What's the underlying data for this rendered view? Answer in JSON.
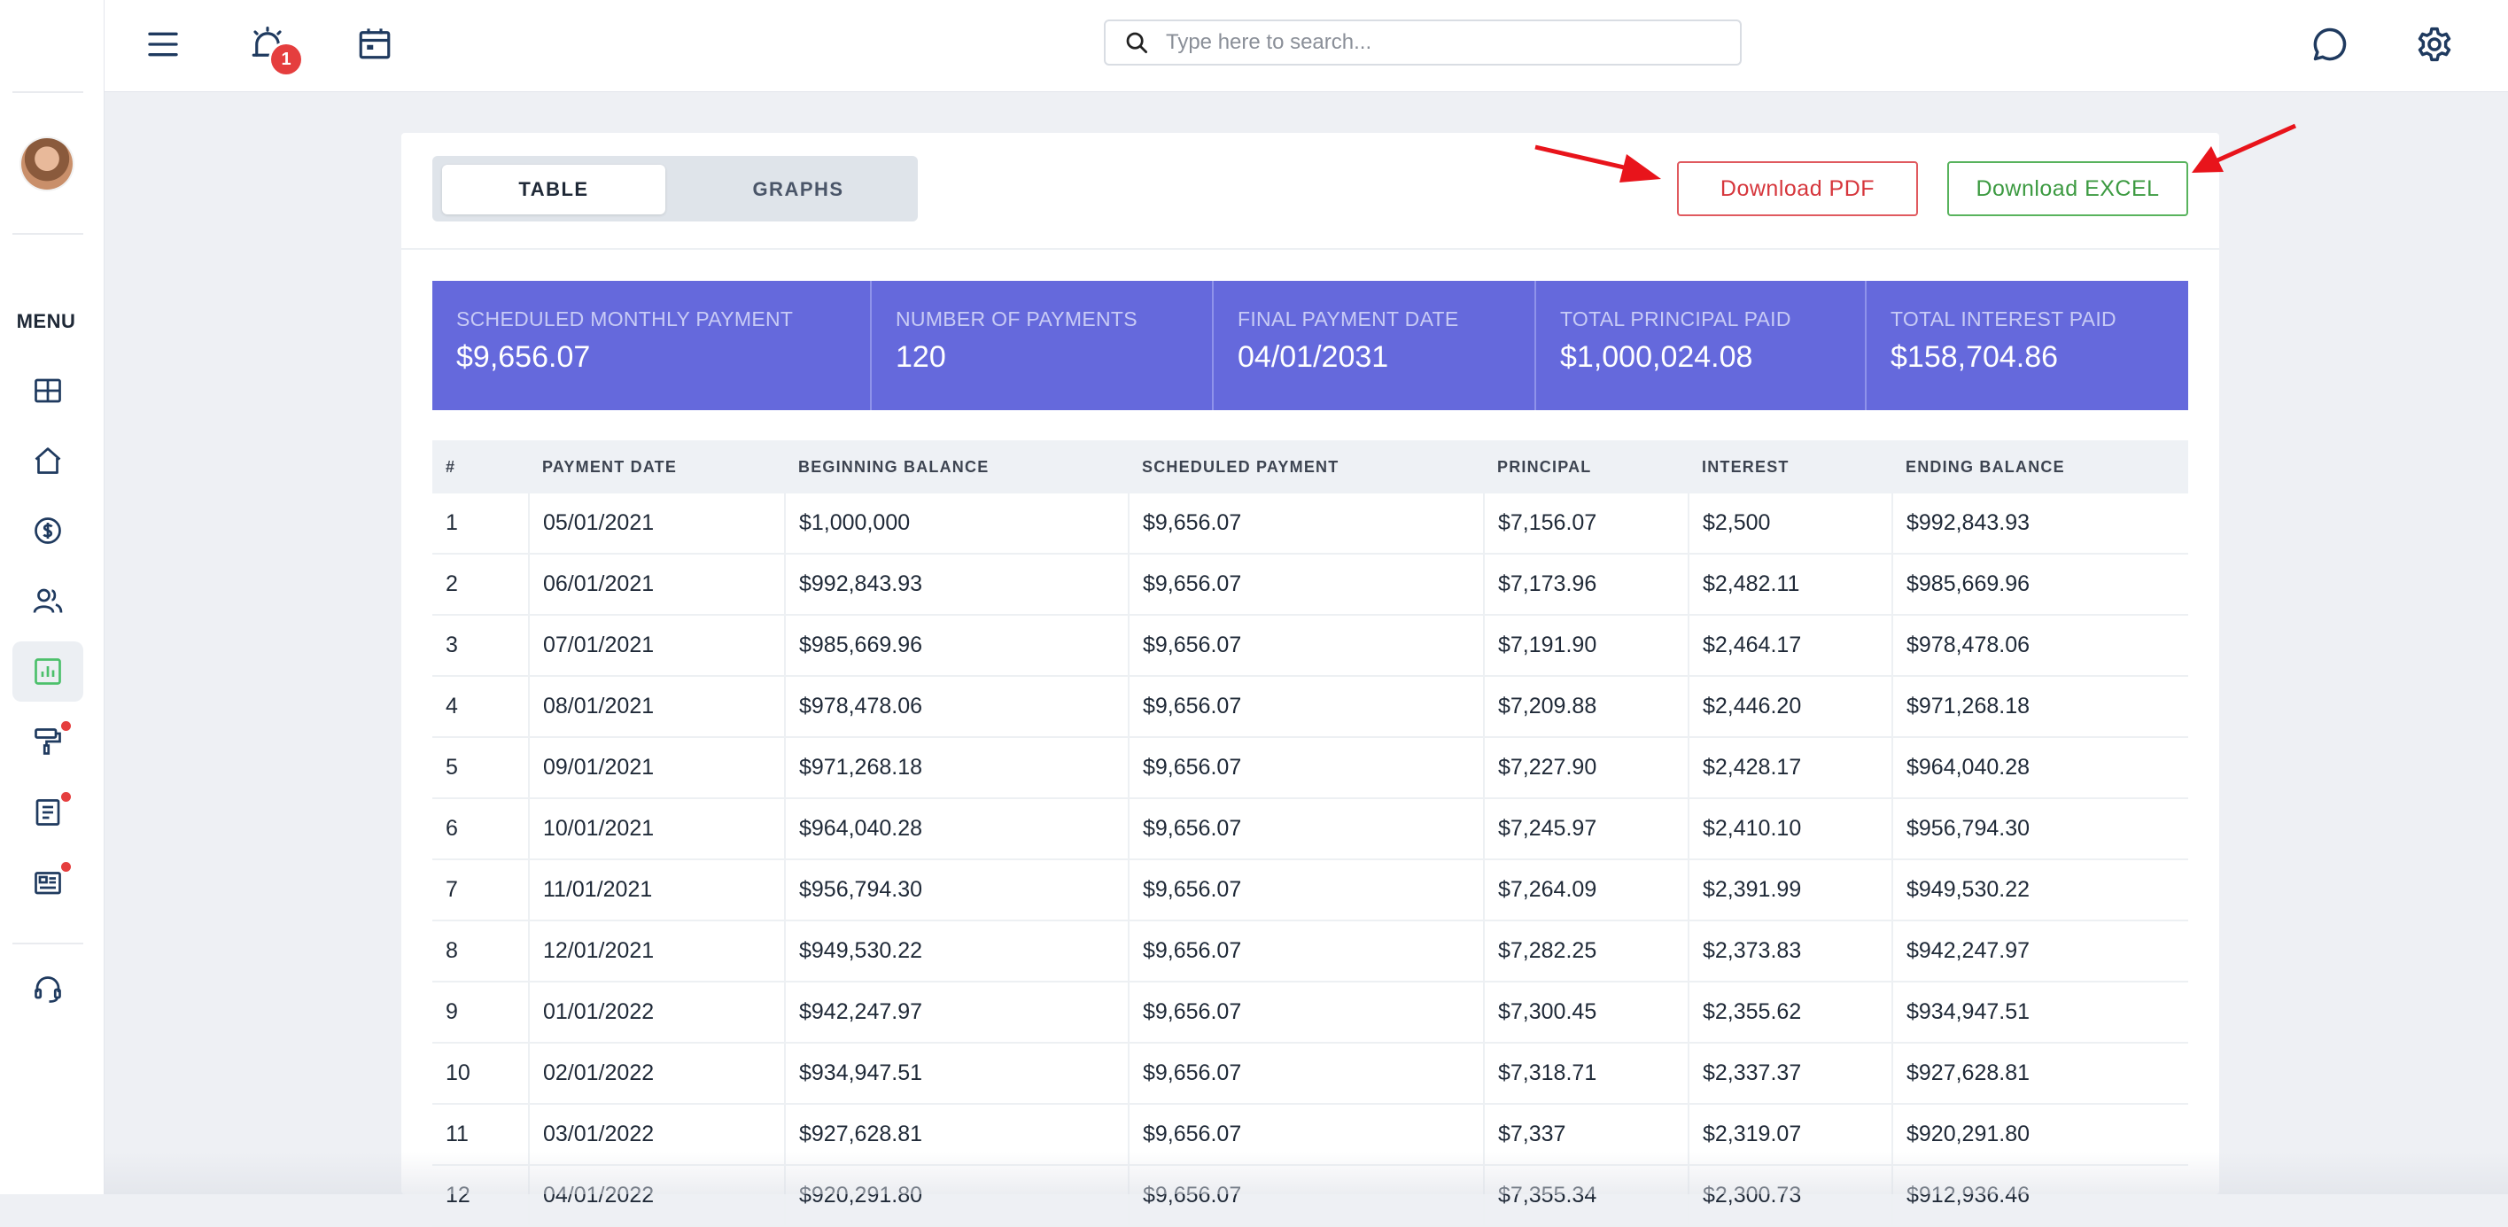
{
  "sidebar": {
    "menu_label": "MENU",
    "items": [
      {
        "icon": "dashboard-grid-icon"
      },
      {
        "icon": "home-icon"
      },
      {
        "icon": "dollar-circle-icon"
      },
      {
        "icon": "users-icon"
      },
      {
        "icon": "bar-chart-icon",
        "active": true
      },
      {
        "icon": "paint-roller-icon",
        "notification": true
      },
      {
        "icon": "document-icon",
        "notification": true
      },
      {
        "icon": "news-icon",
        "notification": true
      },
      {
        "icon": "headset-support-icon"
      }
    ]
  },
  "topbar": {
    "notification_count": "1",
    "search_placeholder": "Type here to search...",
    "icons": [
      "menu-icon",
      "alarm-icon",
      "calendar-icon",
      "chat-icon",
      "settings-icon"
    ]
  },
  "view_toggle": {
    "table_label": "TABLE",
    "graphs_label": "GRAPHS",
    "selected": "TABLE"
  },
  "actions": {
    "pdf_label": "Download PDF",
    "excel_label": "Download EXCEL"
  },
  "summary": [
    {
      "label": "SCHEDULED MONTHLY PAYMENT",
      "value": "$9,656.07"
    },
    {
      "label": "NUMBER OF PAYMENTS",
      "value": "120"
    },
    {
      "label": "FINAL PAYMENT DATE",
      "value": "04/01/2031"
    },
    {
      "label": "TOTAL PRINCIPAL PAID",
      "value": "$1,000,024.08"
    },
    {
      "label": "TOTAL INTEREST PAID",
      "value": "$158,704.86"
    }
  ],
  "table": {
    "columns": [
      "#",
      "PAYMENT DATE",
      "BEGINNING BALANCE",
      "SCHEDULED PAYMENT",
      "PRINCIPAL",
      "INTEREST",
      "ENDING BALANCE"
    ],
    "rows": [
      [
        "1",
        "05/01/2021",
        "$1,000,000",
        "$9,656.07",
        "$7,156.07",
        "$2,500",
        "$992,843.93"
      ],
      [
        "2",
        "06/01/2021",
        "$992,843.93",
        "$9,656.07",
        "$7,173.96",
        "$2,482.11",
        "$985,669.96"
      ],
      [
        "3",
        "07/01/2021",
        "$985,669.96",
        "$9,656.07",
        "$7,191.90",
        "$2,464.17",
        "$978,478.06"
      ],
      [
        "4",
        "08/01/2021",
        "$978,478.06",
        "$9,656.07",
        "$7,209.88",
        "$2,446.20",
        "$971,268.18"
      ],
      [
        "5",
        "09/01/2021",
        "$971,268.18",
        "$9,656.07",
        "$7,227.90",
        "$2,428.17",
        "$964,040.28"
      ],
      [
        "6",
        "10/01/2021",
        "$964,040.28",
        "$9,656.07",
        "$7,245.97",
        "$2,410.10",
        "$956,794.30"
      ],
      [
        "7",
        "11/01/2021",
        "$956,794.30",
        "$9,656.07",
        "$7,264.09",
        "$2,391.99",
        "$949,530.22"
      ],
      [
        "8",
        "12/01/2021",
        "$949,530.22",
        "$9,656.07",
        "$7,282.25",
        "$2,373.83",
        "$942,247.97"
      ],
      [
        "9",
        "01/01/2022",
        "$942,247.97",
        "$9,656.07",
        "$7,300.45",
        "$2,355.62",
        "$934,947.51"
      ],
      [
        "10",
        "02/01/2022",
        "$934,947.51",
        "$9,656.07",
        "$7,318.71",
        "$2,337.37",
        "$927,628.81"
      ],
      [
        "11",
        "03/01/2022",
        "$927,628.81",
        "$9,656.07",
        "$7,337",
        "$2,319.07",
        "$920,291.80"
      ],
      [
        "12",
        "04/01/2022",
        "$920,291.80",
        "$9,656.07",
        "$7,355.34",
        "$2,300.73",
        "$912,936.46"
      ]
    ]
  },
  "colors": {
    "summary_bg": "#6569dc",
    "pdf_accent": "#d6363c",
    "excel_accent": "#3c9a41",
    "annotation_arrow": "#e8141b"
  }
}
